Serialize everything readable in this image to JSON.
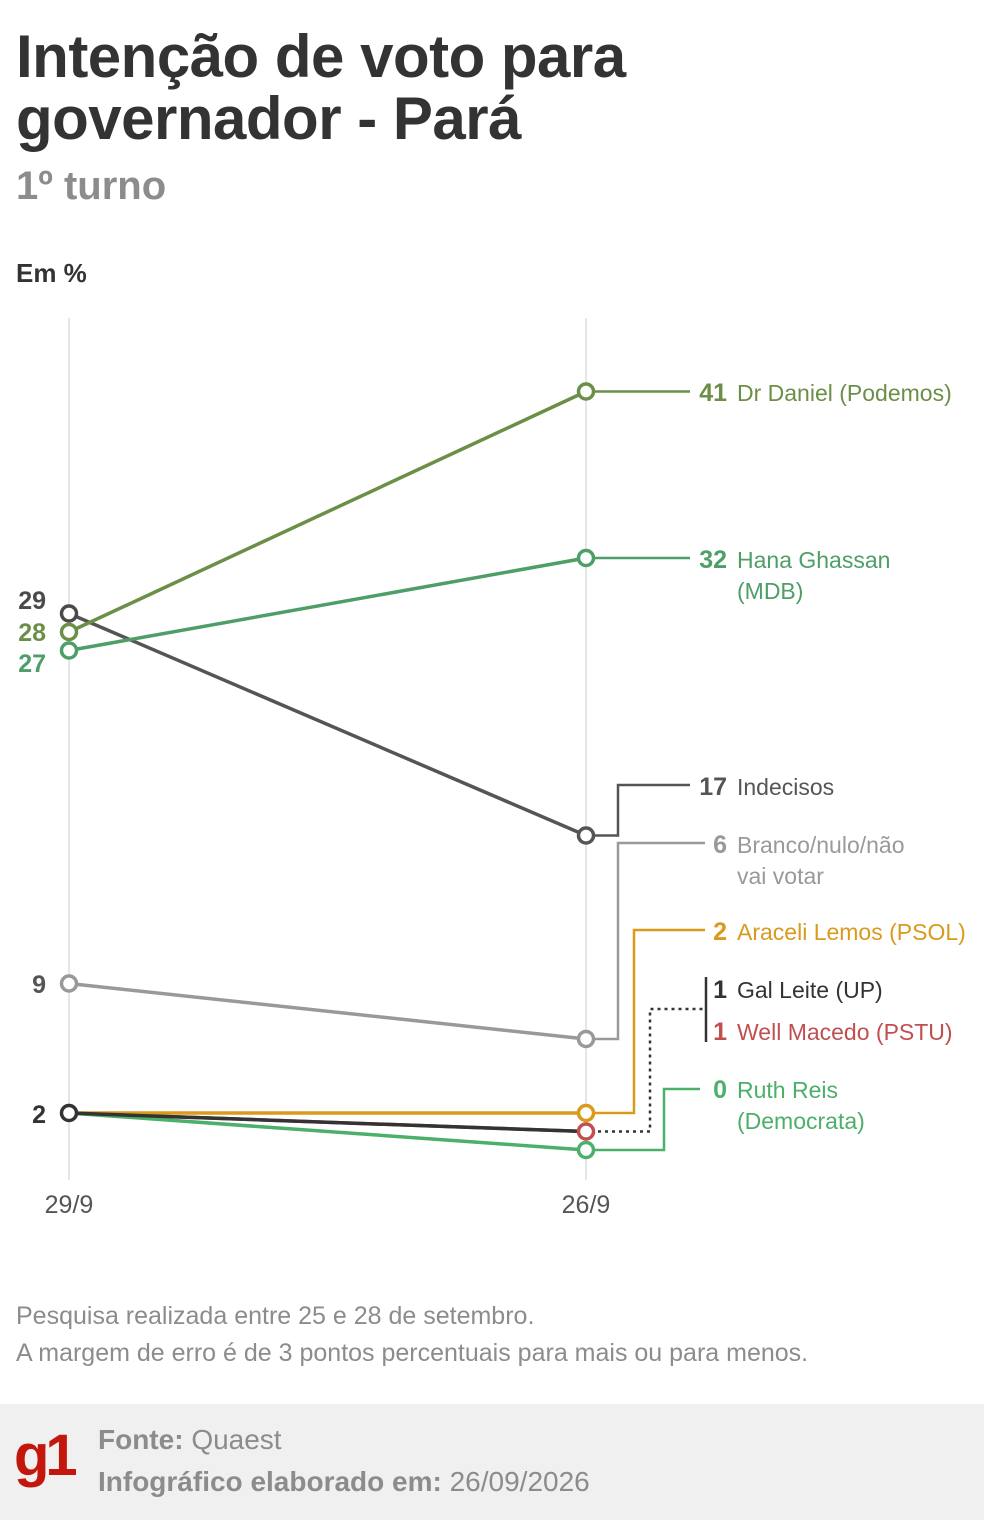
{
  "header": {
    "title": "Intenção de voto para governador - Pará",
    "subtitle": "1º turno",
    "unit": "Em %"
  },
  "chart_data": {
    "type": "line",
    "x": [
      "29/9",
      "26/9"
    ],
    "ylim": [
      0,
      45
    ],
    "grid": "vertical lines at each date",
    "legend": "right-side labels",
    "start_labels": [
      {
        "value": "29",
        "color": "#4a4a4a"
      },
      {
        "value": "28",
        "color": "#6b8f47"
      },
      {
        "value": "27",
        "color": "#4e9e68"
      },
      {
        "value": "9",
        "color": "#555555"
      },
      {
        "value": "2",
        "color": "#333333"
      }
    ],
    "series": [
      {
        "name": "Dr Daniel (Podemos)",
        "values": [
          28,
          41
        ],
        "color": "#6b8f47",
        "label_value": "41",
        "label_lines": [
          "Dr Daniel (Podemos)"
        ]
      },
      {
        "name": "Hana Ghassan (MDB)",
        "values": [
          27,
          32
        ],
        "color": "#4e9e68",
        "label_value": "32",
        "label_lines": [
          "Hana Ghassan",
          "(MDB)"
        ]
      },
      {
        "name": "Indecisos",
        "values": [
          29,
          17
        ],
        "color": "#555555",
        "label_value": "17",
        "label_lines": [
          "Indecisos"
        ]
      },
      {
        "name": "Branco/nulo/não vai votar",
        "values": [
          9,
          6
        ],
        "color": "#999999",
        "label_value": "6",
        "label_lines": [
          "Branco/nulo/não",
          "vai votar"
        ]
      },
      {
        "name": "Araceli Lemos (PSOL)",
        "values": [
          2,
          2
        ],
        "color": "#d99a1e",
        "label_value": "2",
        "label_lines": [
          "Araceli Lemos (PSOL)"
        ]
      },
      {
        "name": "Gal Leite (UP)",
        "values": [
          2,
          1
        ],
        "color": "#333333",
        "label_value": "1",
        "label_lines": [
          "Gal Leite (UP)"
        ]
      },
      {
        "name": "Well Macedo (PSTU)",
        "values": [
          2,
          1
        ],
        "color": "#c05050",
        "label_value": "1",
        "label_lines": [
          "Well Macedo (PSTU)"
        ]
      },
      {
        "name": "Ruth Reis (Democrata)",
        "values": [
          2,
          0
        ],
        "color": "#4caf6a",
        "label_value": "0",
        "label_lines": [
          "Ruth Reis",
          "(Democrata)"
        ]
      }
    ]
  },
  "notes": {
    "line1": "Pesquisa realizada entre 25 e 28 de setembro.",
    "line2": "A margem de erro é de 3 pontos percentuais para mais ou para menos."
  },
  "footer": {
    "logo": "g1",
    "source_label": "Fonte:",
    "source_value": "Quaest",
    "date_label": "Infográfico elaborado em:",
    "date_value": "26/09/2026"
  }
}
